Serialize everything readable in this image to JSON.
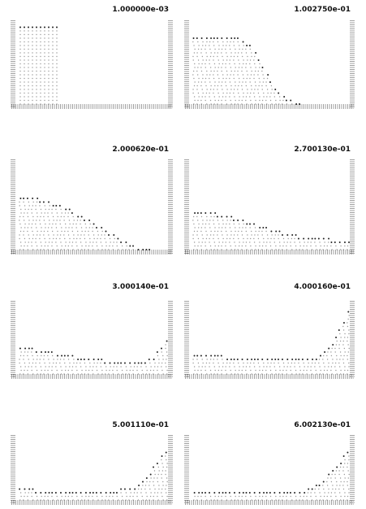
{
  "panels": [
    {
      "title": "1.000000e-03"
    },
    {
      "title": "1.002750e-01"
    },
    {
      "title": "2.000620e-01"
    },
    {
      "title": "2.700130e-01"
    },
    {
      "title": "3.000140e-01"
    },
    {
      "title": "4.000160e-01"
    },
    {
      "title": "5.001110e-01"
    },
    {
      "title": "6.002130e-01"
    }
  ]
}
